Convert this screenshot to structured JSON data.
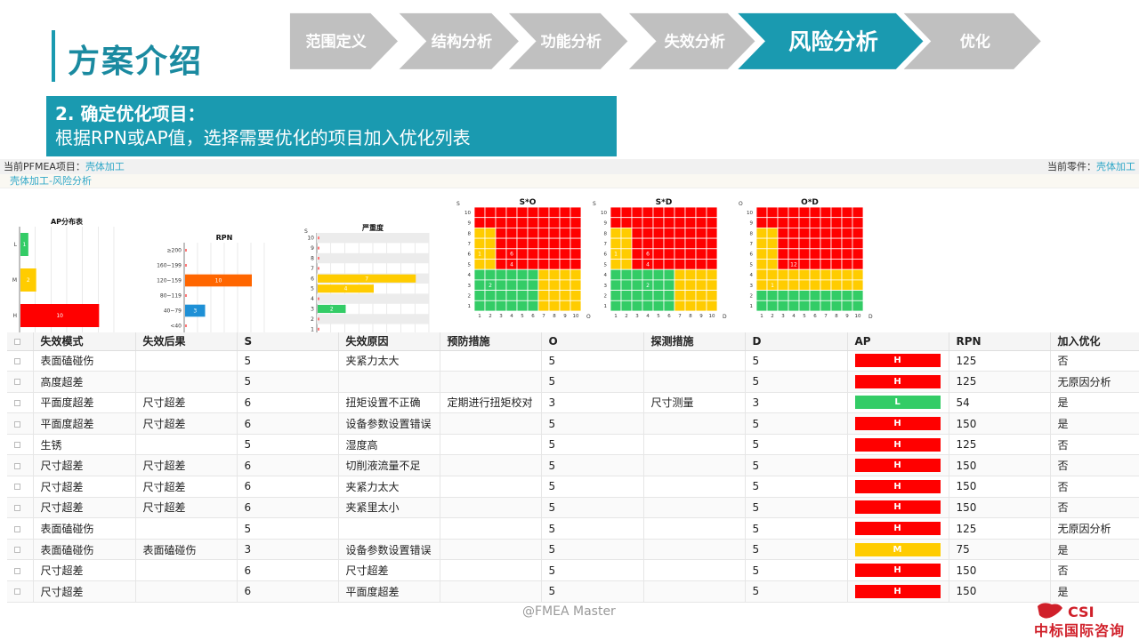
{
  "title": "方案介绍",
  "steps": [
    "范围定义",
    "结构分析",
    "功能分析",
    "失效分析",
    "风险分析",
    "优化"
  ],
  "active_step": 4,
  "banner": {
    "heading": "2. 确定优化项目：",
    "text": "根据RPN或AP值，选择需要优化的项目加入优化列表"
  },
  "topbar": {
    "project_label": "当前PFMEA项目：",
    "project": "壳体加工",
    "part_label": "当前零件：",
    "part": "壳体加工"
  },
  "crumb": "壳体加工-风险分析",
  "colors": {
    "accent": "#1a9ab0",
    "red": "#ff0000",
    "yellow": "#ffcc00",
    "green": "#33cc66",
    "orange": "#ff6600",
    "blue": "#1e90d6"
  },
  "chart_data": [
    {
      "type": "bar",
      "title": "AP分布表",
      "categories": [
        "L",
        "M",
        "H"
      ],
      "values": [
        1,
        2,
        10
      ],
      "xlim": [
        0,
        12
      ],
      "xticks": [
        "0",
        "2",
        "4",
        "6",
        "8",
        "10",
        "12"
      ],
      "orientation": "horizontal"
    },
    {
      "type": "bar",
      "title": "RPN",
      "categories": [
        "≥200",
        "160~199",
        "120~159",
        "80~119",
        "40~79",
        "<40"
      ],
      "values": [
        0,
        0,
        10,
        0,
        3,
        0
      ],
      "xlim": [
        0,
        12
      ],
      "xticks": [
        "0",
        "2",
        "4",
        "6",
        "8",
        "10",
        "12"
      ],
      "orientation": "horizontal"
    },
    {
      "type": "bar",
      "title": "严重度",
      "categories": [
        "10",
        "9",
        "8",
        "7",
        "6",
        "5",
        "4",
        "3",
        "2",
        "1"
      ],
      "values": [
        0,
        0,
        0,
        0,
        7,
        4,
        0,
        2,
        0,
        0
      ],
      "xlim": [
        0,
        8
      ],
      "xticks": [
        "0",
        "1",
        "2",
        "3",
        "4",
        "5",
        "6",
        "7",
        "8"
      ],
      "ylabel": "S",
      "orientation": "horizontal"
    },
    {
      "type": "heatmap",
      "title": "S*O",
      "ylabel": "S",
      "xlabel": "O",
      "labels": [
        {
          "row": 6,
          "col": 1,
          "value": "1"
        },
        {
          "row": 6,
          "col": 4,
          "value": "6"
        },
        {
          "row": 5,
          "col": 4,
          "value": "4"
        },
        {
          "row": 3,
          "col": 2,
          "value": "2"
        }
      ]
    },
    {
      "type": "heatmap",
      "title": "S*D",
      "ylabel": "S",
      "xlabel": "D",
      "labels": [
        {
          "row": 6,
          "col": 1,
          "value": "1"
        },
        {
          "row": 6,
          "col": 4,
          "value": "6"
        },
        {
          "row": 5,
          "col": 4,
          "value": "4"
        },
        {
          "row": 3,
          "col": 4,
          "value": "2"
        }
      ]
    },
    {
      "type": "heatmap",
      "title": "O*D",
      "ylabel": "O",
      "xlabel": "D",
      "labels": [
        {
          "row": 5,
          "col": 4,
          "value": "12"
        },
        {
          "row": 3,
          "col": 2,
          "value": "1"
        }
      ]
    }
  ],
  "table": {
    "headers": [
      "失效模式",
      "失效后果",
      "S",
      "失效原因",
      "预防措施",
      "O",
      "探测措施",
      "D",
      "AP",
      "RPN",
      "加入优化"
    ],
    "rows": [
      [
        "表面磕碰伤",
        "",
        "5",
        "夹紧力太大",
        "",
        "5",
        "",
        "5",
        "H",
        "125",
        "否"
      ],
      [
        "高度超差",
        "",
        "5",
        "",
        "",
        "5",
        "",
        "5",
        "H",
        "125",
        "无原因分析"
      ],
      [
        "平面度超差",
        "尺寸超差",
        "6",
        "扭矩设置不正确",
        "定期进行扭矩校对",
        "3",
        "尺寸测量",
        "3",
        "L",
        "54",
        "是"
      ],
      [
        "平面度超差",
        "尺寸超差",
        "6",
        "设备参数设置错误",
        "",
        "5",
        "",
        "5",
        "H",
        "150",
        "是"
      ],
      [
        "生锈",
        "",
        "5",
        "湿度高",
        "",
        "5",
        "",
        "5",
        "H",
        "125",
        "否"
      ],
      [
        "尺寸超差",
        "尺寸超差",
        "6",
        "切削液流量不足",
        "",
        "5",
        "",
        "5",
        "H",
        "150",
        "否"
      ],
      [
        "尺寸超差",
        "尺寸超差",
        "6",
        "夹紧力太大",
        "",
        "5",
        "",
        "5",
        "H",
        "150",
        "否"
      ],
      [
        "尺寸超差",
        "尺寸超差",
        "6",
        "夹紧里太小",
        "",
        "5",
        "",
        "5",
        "H",
        "150",
        "否"
      ],
      [
        "表面磕碰伤",
        "",
        "5",
        "",
        "",
        "5",
        "",
        "5",
        "H",
        "125",
        "无原因分析"
      ],
      [
        "表面磕碰伤",
        "表面磕碰伤",
        "3",
        "设备参数设置错误",
        "",
        "5",
        "",
        "5",
        "M",
        "75",
        "是"
      ],
      [
        "尺寸超差",
        "",
        "6",
        "尺寸超差",
        "",
        "5",
        "",
        "5",
        "H",
        "150",
        "否"
      ],
      [
        "尺寸超差",
        "",
        "6",
        "平面度超差",
        "",
        "5",
        "",
        "5",
        "H",
        "150",
        "是"
      ]
    ]
  },
  "watermark": "@FMEA Master",
  "logo": {
    "text": "中标国际咨询",
    "mark": "CSI"
  }
}
